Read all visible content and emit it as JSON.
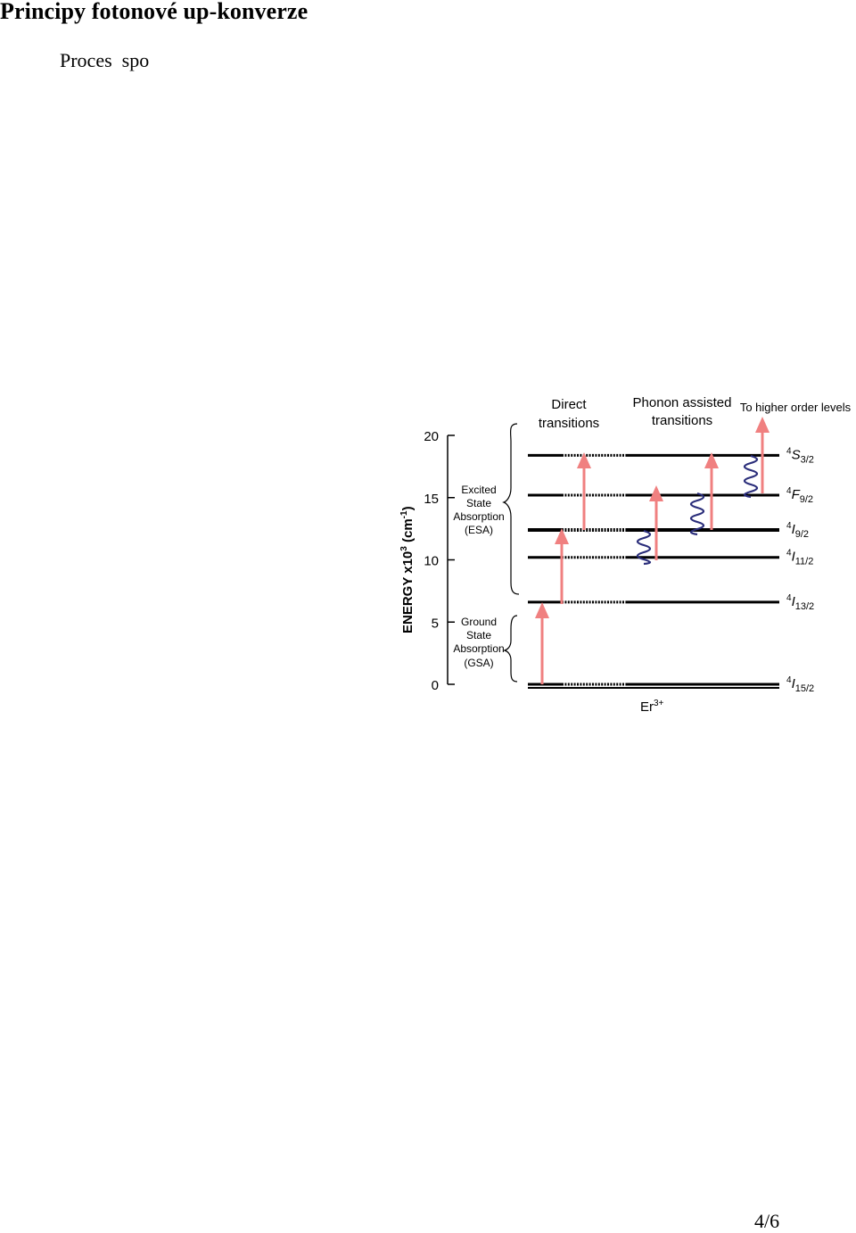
{
  "document": {
    "title": "Principy fotonové up-konverze",
    "lead_text": "Proces  spo",
    "page_number": "4/6"
  },
  "figure": {
    "axis_label_text": "ENERGY x10",
    "axis_label_sup": "3",
    "axis_label_unit": " (cm",
    "axis_label_unit_sup": "-1",
    "axis_label_close": ")",
    "ticks": [
      "20",
      "15",
      "10",
      "5",
      "0"
    ],
    "tick_values": [
      20,
      15,
      10,
      5,
      0
    ],
    "y_range": [
      0,
      20
    ],
    "esa_label": [
      "Excited",
      "State",
      "Absorption",
      "(ESA)"
    ],
    "gsa_label": [
      "Ground",
      "State",
      "Absorption",
      "(GSA)"
    ],
    "header_direct": [
      "Direct",
      "transitions"
    ],
    "header_phonon": [
      "Phonon assisted",
      "transitions"
    ],
    "header_higher": "To higher order levels",
    "ion_label": "Er",
    "ion_sup": "3+",
    "levels": [
      {
        "pre": "4",
        "main": "S",
        "sub": "3/2",
        "energy": 18.4
      },
      {
        "pre": "4",
        "main": "F",
        "sub": "9/2",
        "energy": 15.2
      },
      {
        "pre": "4",
        "main": "I",
        "sub": "9/2",
        "energy": 12.4
      },
      {
        "pre": "4",
        "main": "I",
        "sub": "11/2",
        "energy": 10.2
      },
      {
        "pre": "4",
        "main": "I",
        "sub": "13/2",
        "energy": 6.6
      },
      {
        "pre": "4",
        "main": "I",
        "sub": "15/2",
        "energy": 0
      }
    ],
    "colors": {
      "arrow": "#f08080",
      "phonon": "#2a2d7a",
      "line": "#000000"
    }
  }
}
